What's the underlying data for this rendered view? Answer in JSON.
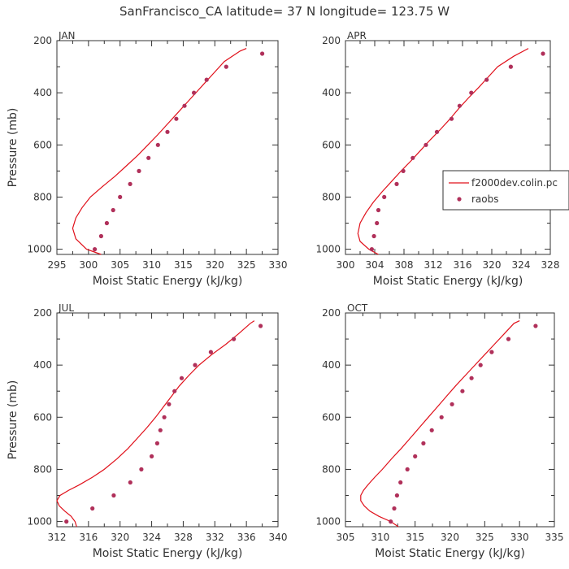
{
  "chart_data": {
    "type": "line",
    "title": "SanFrancisco_CA  latitude= 37 N longitude= 123.75 W",
    "legend": {
      "placement": "right",
      "entries": [
        "f2000dev.colin.pc",
        "raobs"
      ]
    },
    "colors": {
      "model": "#e0101a",
      "obs": "#b0305a",
      "axis": "#333333"
    },
    "panels": [
      {
        "name": "JAN",
        "xlabel": "Moist Static Energy (kJ/kg)",
        "ylabel": "Pressure (mb)",
        "xlim": [
          295,
          330
        ],
        "ylim": [
          1020,
          200
        ],
        "xticks": [
          "295",
          "300",
          "305",
          "310",
          "315",
          "320",
          "325",
          "330"
        ],
        "yticks": [
          "200",
          "400",
          "600",
          "800",
          "1000"
        ],
        "model": {
          "pressure": [
            1020,
            1000,
            960,
            920,
            880,
            840,
            800,
            760,
            720,
            680,
            640,
            600,
            560,
            520,
            480,
            440,
            400,
            360,
            320,
            280,
            240,
            230
          ],
          "mse": [
            302.0,
            299.7,
            298.0,
            297.5,
            298.0,
            299.0,
            300.3,
            302.2,
            304.2,
            306.0,
            307.8,
            309.4,
            311.0,
            312.5,
            314.0,
            315.5,
            317.0,
            318.5,
            320.0,
            321.5,
            324.0,
            325.0
          ]
        },
        "raobs": {
          "pressure": [
            1000,
            950,
            900,
            850,
            800,
            750,
            700,
            650,
            600,
            550,
            500,
            450,
            400,
            350,
            300,
            250
          ],
          "mse": [
            301.0,
            302.0,
            302.9,
            303.9,
            305.0,
            306.6,
            308.0,
            309.5,
            311.0,
            312.5,
            313.9,
            315.2,
            316.7,
            318.7,
            321.8,
            327.5
          ]
        }
      },
      {
        "name": "APR",
        "xlabel": "Moist Static Energy (kJ/kg)",
        "ylabel": "",
        "xlim": [
          300,
          328
        ],
        "ylim": [
          1020,
          200
        ],
        "xticks": [
          "300",
          "304",
          "308",
          "312",
          "316",
          "320",
          "324",
          "328"
        ],
        "yticks": [
          "200",
          "400",
          "600",
          "800",
          "1000"
        ],
        "model": {
          "pressure": [
            1020,
            1000,
            970,
            940,
            900,
            860,
            820,
            780,
            740,
            700,
            660,
            620,
            580,
            540,
            500,
            460,
            420,
            380,
            340,
            300,
            260,
            230
          ],
          "mse": [
            304.5,
            303.2,
            302.0,
            301.7,
            302.0,
            302.8,
            303.8,
            305.0,
            306.3,
            307.6,
            309.0,
            310.3,
            311.6,
            313.0,
            314.3,
            315.5,
            316.8,
            318.2,
            319.5,
            320.8,
            323.0,
            325.0
          ]
        },
        "raobs": {
          "pressure": [
            1000,
            950,
            900,
            850,
            800,
            750,
            700,
            650,
            600,
            550,
            500,
            450,
            400,
            350,
            300,
            250
          ],
          "mse": [
            303.6,
            303.9,
            304.3,
            304.5,
            305.3,
            307.0,
            307.9,
            309.2,
            311.0,
            312.5,
            314.5,
            315.6,
            317.2,
            319.3,
            322.6,
            327.0
          ]
        }
      },
      {
        "name": "JUL",
        "xlabel": "Moist Static Energy (kJ/kg)",
        "ylabel": "Pressure (mb)",
        "xlim": [
          312,
          340
        ],
        "ylim": [
          1020,
          200
        ],
        "xticks": [
          "312",
          "316",
          "320",
          "324",
          "328",
          "332",
          "336",
          "340"
        ],
        "yticks": [
          "200",
          "400",
          "600",
          "800",
          "1000"
        ],
        "model": {
          "pressure": [
            1020,
            1000,
            980,
            960,
            940,
            920,
            900,
            880,
            860,
            830,
            800,
            760,
            720,
            680,
            640,
            600,
            560,
            520,
            480,
            440,
            400,
            360,
            320,
            280,
            240,
            230
          ],
          "mse": [
            314.5,
            314.3,
            313.8,
            313.0,
            312.3,
            312.0,
            312.4,
            313.5,
            314.8,
            316.5,
            318.0,
            319.6,
            321.0,
            322.2,
            323.4,
            324.5,
            325.5,
            326.5,
            327.5,
            328.7,
            330.0,
            331.6,
            333.4,
            335.0,
            336.5,
            337.0
          ]
        },
        "raobs": {
          "pressure": [
            1000,
            950,
            900,
            850,
            800,
            750,
            700,
            650,
            600,
            550,
            500,
            450,
            400,
            350,
            300,
            250
          ],
          "mse": [
            313.2,
            316.5,
            319.2,
            321.3,
            322.7,
            324.0,
            324.7,
            325.1,
            325.6,
            326.2,
            326.9,
            327.8,
            329.5,
            331.5,
            334.4,
            337.8
          ]
        }
      },
      {
        "name": "OCT",
        "xlabel": "Moist Static Energy (kJ/kg)",
        "ylabel": "",
        "xlim": [
          305,
          335
        ],
        "ylim": [
          1020,
          200
        ],
        "xticks": [
          "305",
          "310",
          "315",
          "320",
          "325",
          "330",
          "335"
        ],
        "yticks": [
          "200",
          "400",
          "600",
          "800",
          "1000"
        ],
        "model": {
          "pressure": [
            1020,
            1000,
            980,
            960,
            940,
            920,
            900,
            880,
            860,
            830,
            800,
            760,
            720,
            680,
            640,
            600,
            560,
            520,
            480,
            440,
            400,
            360,
            320,
            280,
            240,
            230
          ],
          "mse": [
            312.6,
            311.5,
            309.8,
            308.5,
            307.7,
            307.2,
            307.2,
            307.6,
            308.2,
            309.2,
            310.3,
            311.6,
            313.0,
            314.3,
            315.6,
            316.9,
            318.2,
            319.5,
            320.8,
            322.2,
            323.6,
            325.0,
            326.4,
            327.8,
            329.2,
            330.0
          ]
        },
        "raobs": {
          "pressure": [
            1000,
            950,
            900,
            850,
            800,
            750,
            700,
            650,
            600,
            550,
            500,
            450,
            400,
            350,
            300,
            250
          ],
          "mse": [
            311.5,
            312.0,
            312.4,
            312.9,
            313.9,
            315.0,
            316.2,
            317.4,
            318.8,
            320.3,
            321.8,
            323.1,
            324.4,
            326.0,
            328.4,
            332.3
          ]
        }
      }
    ]
  }
}
